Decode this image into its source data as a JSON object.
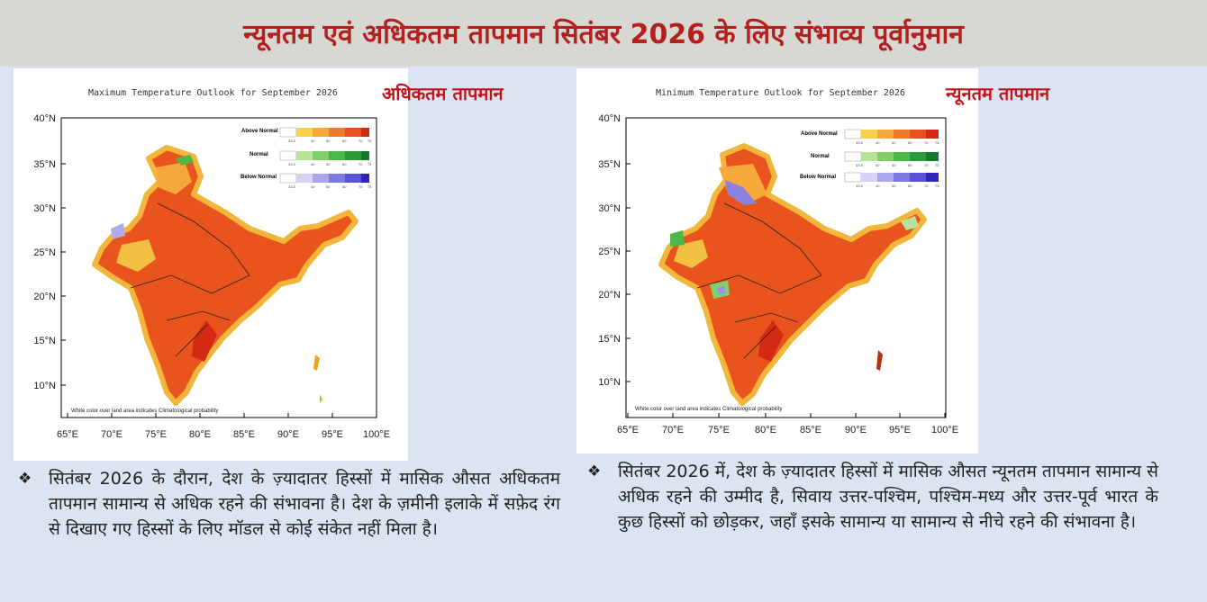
{
  "header": {
    "title": "न्यूनतम एवं अधिकतम तापमान सितंबर 2026 के लिए संभाव्य पूर्वानुमान"
  },
  "left_map": {
    "title": "Maximum Temperature Outlook for September 2026",
    "label": "अधिकतम तापमान",
    "legend": {
      "above": "Above Normal",
      "normal": "Normal",
      "below": "Below Normal",
      "ticks": [
        "33.5",
        "40",
        "50",
        "60",
        "70",
        "75"
      ]
    },
    "footnote": "White color over land area indicates Climatological probability",
    "lat_labels": [
      "40°N",
      "35°N",
      "30°N",
      "25°N",
      "20°N",
      "15°N",
      "10°N"
    ],
    "lon_labels": [
      "65°E",
      "70°E",
      "75°E",
      "80°E",
      "85°E",
      "90°E",
      "95°E",
      "100°E"
    ]
  },
  "right_map": {
    "title": "Minimum Temperature Outlook for September 2026",
    "label": "न्यूनतम तापमान",
    "legend": {
      "above": "Above Normal",
      "normal": "Normal",
      "below": "Below Normal",
      "ticks": [
        "33.5",
        "40",
        "50",
        "60",
        "70",
        "75"
      ]
    },
    "footnote": "White color over land area indicates Climatological probability",
    "lat_labels": [
      "40°N",
      "35°N",
      "30°N",
      "25°N",
      "20°N",
      "15°N",
      "10°N"
    ],
    "lon_labels": [
      "65°E",
      "70°E",
      "75°E",
      "80°E",
      "85°E",
      "90°E",
      "95°E",
      "100°E"
    ]
  },
  "bullets": {
    "symbol": "❖",
    "left": "सितंबर 2026 के दौरान, देश के ज़्यादातर हिस्सों में मासिक औसत अधिकतम तापमान सामान्य से अधिक रहने की संभावना है। देश के ज़मीनी इलाके में सफ़ेद रंग से दिखाए गए हिस्सों के लिए मॉडल से कोई संकेत नहीं मिला है।",
    "right": "सितंबर 2026 में, देश के ज़्यादातर हिस्सों में मासिक औसत न्यूनतम तापमान सामान्य से अधिक रहने की उम्मीद है, सिवाय उत्तर-पश्चिम, पश्चिम-मध्य और उत्तर-पूर्व भारत के कुछ हिस्सों को छोड़कर, जहाँ इसके सामान्य या सामान्य से नीचे रहने की संभावना है।"
  },
  "colors": {
    "title_red": "#b22020",
    "above_normal": [
      "#f7d14a",
      "#f6a83a",
      "#f07a2a",
      "#e8501e",
      "#d42a14"
    ],
    "normal": [
      "#b6e29a",
      "#7fd06a",
      "#4cb84a",
      "#2a9a3a",
      "#157a2a"
    ],
    "below_normal": [
      "#d6d4f6",
      "#aaa6ee",
      "#7e78e2",
      "#5a52d6",
      "#2e26b8"
    ]
  }
}
